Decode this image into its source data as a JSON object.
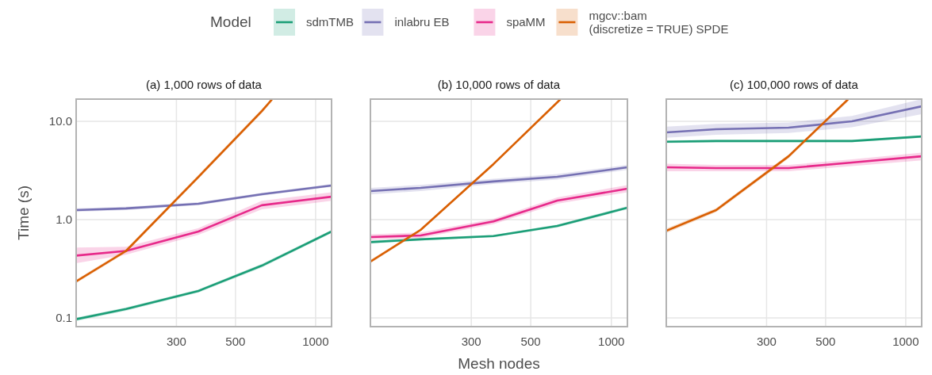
{
  "chart_data": [
    {
      "type": "line",
      "title": "(a) 1,000 rows of data",
      "ylabel": "Time (s)",
      "log": "xy",
      "grid": true,
      "legend": "top",
      "legend_title": "Model",
      "xlim": [
        126,
        1148
      ],
      "xticks": [
        300,
        500,
        1000
      ],
      "ylim": [
        0.0815,
        16.8
      ],
      "yticks": [
        0.1,
        {
          "value": 1,
          "label": "1.0"
        },
        {
          "value": 10,
          "label": "10.0"
        }
      ],
      "series": [
        {
          "name": "sdmTMB",
          "color": "#1b9e77",
          "x": [
            126,
            194,
            363,
            628,
            1148
          ],
          "values": [
            0.097,
            0.123,
            0.188,
            0.34,
            0.757
          ],
          "lower": [
            0.093,
            0.118,
            0.181,
            0.325,
            0.73
          ],
          "upper": [
            0.101,
            0.128,
            0.195,
            0.355,
            0.785
          ]
        },
        {
          "name": "inlabru EB",
          "color": "#7570b3",
          "x": [
            126,
            194,
            363,
            628,
            1148
          ],
          "values": [
            1.25,
            1.3,
            1.45,
            1.81,
            2.22
          ],
          "lower": [
            1.2,
            1.25,
            1.4,
            1.75,
            2.15
          ],
          "upper": [
            1.3,
            1.35,
            1.5,
            1.87,
            2.3
          ]
        },
        {
          "name": "spaMM",
          "color": "#e7298a",
          "x": [
            126,
            194,
            363,
            628,
            1148
          ],
          "values": [
            0.43,
            0.48,
            0.757,
            1.4,
            1.71
          ],
          "lower": [
            0.36,
            0.44,
            0.7,
            1.27,
            1.55
          ],
          "upper": [
            0.52,
            0.53,
            0.82,
            1.55,
            1.9
          ]
        },
        {
          "name": "mgcv::bam\n(discretize = TRUE) SPDE",
          "color": "#d95f02",
          "x": [
            126,
            194,
            363,
            628,
            687
          ],
          "values": [
            0.235,
            0.48,
            2.72,
            12.7,
            16.8
          ],
          "lower": [
            0.225,
            0.46,
            2.6,
            12.1,
            16.0
          ],
          "upper": [
            0.245,
            0.5,
            2.85,
            13.3,
            16.8
          ]
        }
      ]
    },
    {
      "type": "line",
      "title": "(b) 10,000 rows of data",
      "xlabel": "Mesh nodes",
      "log": "xy",
      "grid": true,
      "tick_labels": "x",
      "xlim": [
        126,
        1148
      ],
      "xticks": [
        300,
        500,
        1000
      ],
      "ylim": [
        0.0815,
        16.8
      ],
      "yticks": [
        0.1,
        1,
        10
      ],
      "series": [
        {
          "color": "#1b9e77",
          "x": [
            126,
            194,
            363,
            628,
            1148
          ],
          "values": [
            0.59,
            0.63,
            0.68,
            0.86,
            1.32
          ],
          "lower": [
            0.57,
            0.61,
            0.66,
            0.83,
            1.27
          ],
          "upper": [
            0.61,
            0.65,
            0.7,
            0.89,
            1.37
          ]
        },
        {
          "color": "#7570b3",
          "x": [
            126,
            194,
            363,
            628,
            1148
          ],
          "values": [
            1.95,
            2.1,
            2.44,
            2.72,
            3.4
          ],
          "lower": [
            1.8,
            1.95,
            2.3,
            2.55,
            3.2
          ],
          "upper": [
            2.1,
            2.25,
            2.6,
            2.9,
            3.6
          ]
        },
        {
          "color": "#e7298a",
          "x": [
            126,
            194,
            363,
            628,
            1148
          ],
          "values": [
            0.665,
            0.69,
            0.96,
            1.56,
            2.06
          ],
          "lower": [
            0.62,
            0.65,
            0.9,
            1.45,
            1.9
          ],
          "upper": [
            0.71,
            0.74,
            1.02,
            1.68,
            2.24
          ]
        },
        {
          "color": "#d95f02",
          "x": [
            126,
            194,
            363,
            646
          ],
          "values": [
            0.374,
            0.785,
            3.67,
            16.8
          ],
          "lower": [
            0.36,
            0.76,
            3.55,
            16.2
          ],
          "upper": [
            0.39,
            0.81,
            3.8,
            16.8
          ]
        }
      ]
    },
    {
      "type": "line",
      "title": "(c) 100,000 rows of data",
      "log": "xy",
      "grid": true,
      "tick_labels": "x",
      "xlim": [
        126,
        1148
      ],
      "xticks": [
        300,
        500,
        1000
      ],
      "ylim": [
        0.0815,
        16.8
      ],
      "yticks": [
        0.1,
        1,
        10
      ],
      "series": [
        {
          "color": "#1b9e77",
          "x": [
            126,
            194,
            363,
            628,
            1148
          ],
          "values": [
            6.2,
            6.3,
            6.3,
            6.3,
            7.0
          ],
          "lower": [
            6.0,
            6.1,
            6.1,
            6.1,
            6.8
          ],
          "upper": [
            6.4,
            6.5,
            6.5,
            6.5,
            7.2
          ]
        },
        {
          "color": "#7570b3",
          "x": [
            126,
            194,
            363,
            628,
            1148
          ],
          "values": [
            7.7,
            8.3,
            8.6,
            10.0,
            14.2
          ],
          "lower": [
            6.8,
            7.3,
            7.6,
            8.7,
            11.8
          ],
          "upper": [
            8.8,
            9.4,
            9.7,
            11.3,
            16.8
          ]
        },
        {
          "color": "#e7298a",
          "x": [
            126,
            194,
            363,
            628,
            1148
          ],
          "values": [
            3.4,
            3.34,
            3.34,
            3.8,
            4.4
          ],
          "lower": [
            3.1,
            3.1,
            3.1,
            3.5,
            4.0
          ],
          "upper": [
            3.7,
            3.6,
            3.6,
            4.1,
            4.8
          ]
        },
        {
          "color": "#d95f02",
          "x": [
            126,
            194,
            363,
            608
          ],
          "values": [
            0.77,
            1.25,
            4.4,
            16.8
          ],
          "lower": [
            0.73,
            1.19,
            4.2,
            16.0
          ],
          "upper": [
            0.81,
            1.31,
            4.6,
            16.8
          ]
        }
      ]
    }
  ]
}
